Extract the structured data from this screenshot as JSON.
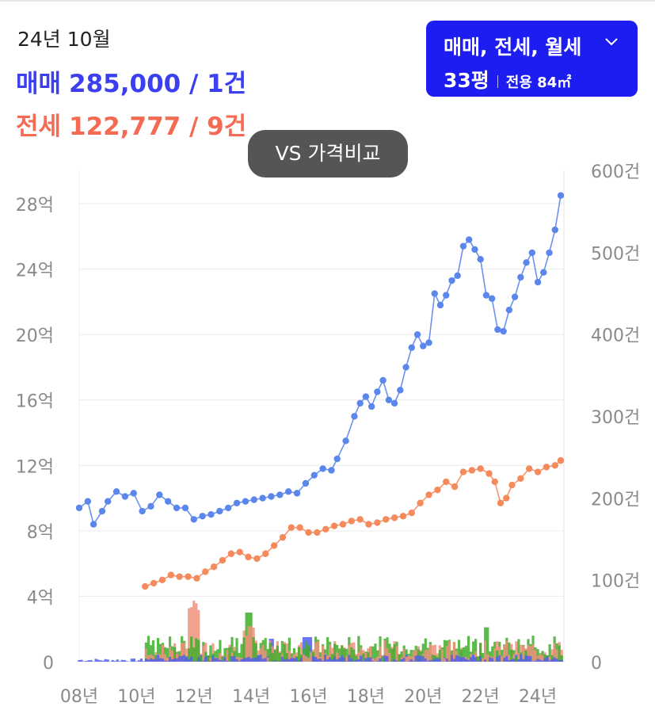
{
  "header": {
    "period": "24년 10월",
    "sale_label": "매매",
    "sale_value": "285,000 / 1건",
    "jeonse_label": "전세",
    "jeonse_value": "122,777 / 9건"
  },
  "filter": {
    "types": "매매, 전세, 월세",
    "pyeong": "33평",
    "area": "전용 84㎡"
  },
  "compare_button": "VS 가격비교",
  "colors": {
    "sale": "#5b86ec",
    "jeonse": "#f58a5c",
    "bar_sale": "#4f5ff0",
    "bar_jeonse": "#f0907a",
    "bar_wolse": "#3fae2c",
    "filter_bg": "#1d1df2"
  },
  "chart_data": {
    "type": "line",
    "xlabel": "",
    "ylabel": "",
    "x_ticks": [
      "08년",
      "10년",
      "12년",
      "14년",
      "16년",
      "18년",
      "20년",
      "22년",
      "24년"
    ],
    "x_range": [
      2008,
      2024.9
    ],
    "y_left_ticks": [
      "0",
      "4억",
      "8억",
      "12억",
      "16억",
      "20억",
      "24억",
      "28억"
    ],
    "y_left_range_eok": [
      0,
      28
    ],
    "y_right_ticks": [
      "0",
      "100건",
      "200건",
      "300건",
      "400건",
      "500건",
      "600건"
    ],
    "y_right_range": [
      0,
      600
    ],
    "grid": true,
    "series": [
      {
        "name": "매매",
        "axis": "left",
        "unit": "억",
        "points": [
          [
            2008.0,
            9.4
          ],
          [
            2008.3,
            9.8
          ],
          [
            2008.5,
            8.4
          ],
          [
            2008.8,
            9.2
          ],
          [
            2009.0,
            9.8
          ],
          [
            2009.3,
            10.4
          ],
          [
            2009.6,
            10.1
          ],
          [
            2009.9,
            10.3
          ],
          [
            2010.2,
            9.2
          ],
          [
            2010.5,
            9.5
          ],
          [
            2010.8,
            10.2
          ],
          [
            2011.1,
            9.8
          ],
          [
            2011.4,
            9.4
          ],
          [
            2011.7,
            9.4
          ],
          [
            2012.0,
            8.7
          ],
          [
            2012.3,
            8.9
          ],
          [
            2012.6,
            9.0
          ],
          [
            2012.9,
            9.2
          ],
          [
            2013.2,
            9.4
          ],
          [
            2013.5,
            9.7
          ],
          [
            2013.8,
            9.8
          ],
          [
            2014.1,
            9.9
          ],
          [
            2014.4,
            10.0
          ],
          [
            2014.7,
            10.1
          ],
          [
            2015.0,
            10.2
          ],
          [
            2015.3,
            10.4
          ],
          [
            2015.6,
            10.3
          ],
          [
            2015.9,
            10.9
          ],
          [
            2016.2,
            11.4
          ],
          [
            2016.5,
            11.8
          ],
          [
            2016.8,
            11.7
          ],
          [
            2017.0,
            12.4
          ],
          [
            2017.3,
            13.5
          ],
          [
            2017.6,
            15.0
          ],
          [
            2017.8,
            15.8
          ],
          [
            2018.0,
            16.2
          ],
          [
            2018.2,
            15.6
          ],
          [
            2018.4,
            16.5
          ],
          [
            2018.6,
            17.2
          ],
          [
            2018.8,
            16.0
          ],
          [
            2019.0,
            15.8
          ],
          [
            2019.2,
            16.6
          ],
          [
            2019.4,
            18.0
          ],
          [
            2019.6,
            19.2
          ],
          [
            2019.8,
            20.0
          ],
          [
            2020.0,
            19.3
          ],
          [
            2020.2,
            19.5
          ],
          [
            2020.4,
            22.5
          ],
          [
            2020.6,
            21.8
          ],
          [
            2020.8,
            22.4
          ],
          [
            2021.0,
            23.3
          ],
          [
            2021.2,
            23.6
          ],
          [
            2021.4,
            25.4
          ],
          [
            2021.6,
            25.8
          ],
          [
            2021.8,
            25.2
          ],
          [
            2022.0,
            24.6
          ],
          [
            2022.2,
            22.4
          ],
          [
            2022.4,
            22.2
          ],
          [
            2022.6,
            20.3
          ],
          [
            2022.8,
            20.2
          ],
          [
            2023.0,
            21.5
          ],
          [
            2023.2,
            22.3
          ],
          [
            2023.4,
            23.5
          ],
          [
            2023.6,
            24.4
          ],
          [
            2023.8,
            25.0
          ],
          [
            2024.0,
            23.2
          ],
          [
            2024.2,
            23.8
          ],
          [
            2024.4,
            25.0
          ],
          [
            2024.6,
            26.4
          ],
          [
            2024.8,
            28.5
          ]
        ]
      },
      {
        "name": "전세",
        "axis": "left",
        "unit": "억",
        "points": [
          [
            2010.3,
            4.6
          ],
          [
            2010.6,
            4.8
          ],
          [
            2010.9,
            5.0
          ],
          [
            2011.2,
            5.3
          ],
          [
            2011.5,
            5.2
          ],
          [
            2011.8,
            5.2
          ],
          [
            2012.1,
            5.1
          ],
          [
            2012.4,
            5.5
          ],
          [
            2012.7,
            5.8
          ],
          [
            2013.0,
            6.2
          ],
          [
            2013.3,
            6.6
          ],
          [
            2013.6,
            6.7
          ],
          [
            2013.9,
            6.4
          ],
          [
            2014.2,
            6.3
          ],
          [
            2014.5,
            6.6
          ],
          [
            2014.8,
            7.1
          ],
          [
            2015.1,
            7.6
          ],
          [
            2015.4,
            8.2
          ],
          [
            2015.7,
            8.2
          ],
          [
            2016.0,
            7.9
          ],
          [
            2016.3,
            7.9
          ],
          [
            2016.6,
            8.1
          ],
          [
            2016.9,
            8.3
          ],
          [
            2017.2,
            8.4
          ],
          [
            2017.5,
            8.6
          ],
          [
            2017.8,
            8.7
          ],
          [
            2018.1,
            8.4
          ],
          [
            2018.4,
            8.5
          ],
          [
            2018.7,
            8.7
          ],
          [
            2019.0,
            8.8
          ],
          [
            2019.3,
            8.9
          ],
          [
            2019.6,
            9.1
          ],
          [
            2019.9,
            9.7
          ],
          [
            2020.2,
            10.2
          ],
          [
            2020.5,
            10.5
          ],
          [
            2020.8,
            11.0
          ],
          [
            2021.1,
            10.7
          ],
          [
            2021.4,
            11.6
          ],
          [
            2021.7,
            11.7
          ],
          [
            2022.0,
            11.8
          ],
          [
            2022.3,
            11.5
          ],
          [
            2022.5,
            11.0
          ],
          [
            2022.7,
            9.7
          ],
          [
            2022.9,
            10.0
          ],
          [
            2023.1,
            10.8
          ],
          [
            2023.4,
            11.2
          ],
          [
            2023.7,
            11.8
          ],
          [
            2024.0,
            11.6
          ],
          [
            2024.3,
            11.9
          ],
          [
            2024.6,
            12.0
          ],
          [
            2024.8,
            12.3
          ]
        ]
      },
      {
        "name": "매매 거래량",
        "axis": "right",
        "type": "bar",
        "unit": "건",
        "approx_range": [
          0,
          30
        ]
      },
      {
        "name": "전세 거래량",
        "axis": "right",
        "type": "bar",
        "unit": "건",
        "approx_range": [
          0,
          85
        ]
      },
      {
        "name": "월세 거래량",
        "axis": "right",
        "type": "bar",
        "unit": "건",
        "approx_range": [
          0,
          65
        ]
      }
    ]
  }
}
